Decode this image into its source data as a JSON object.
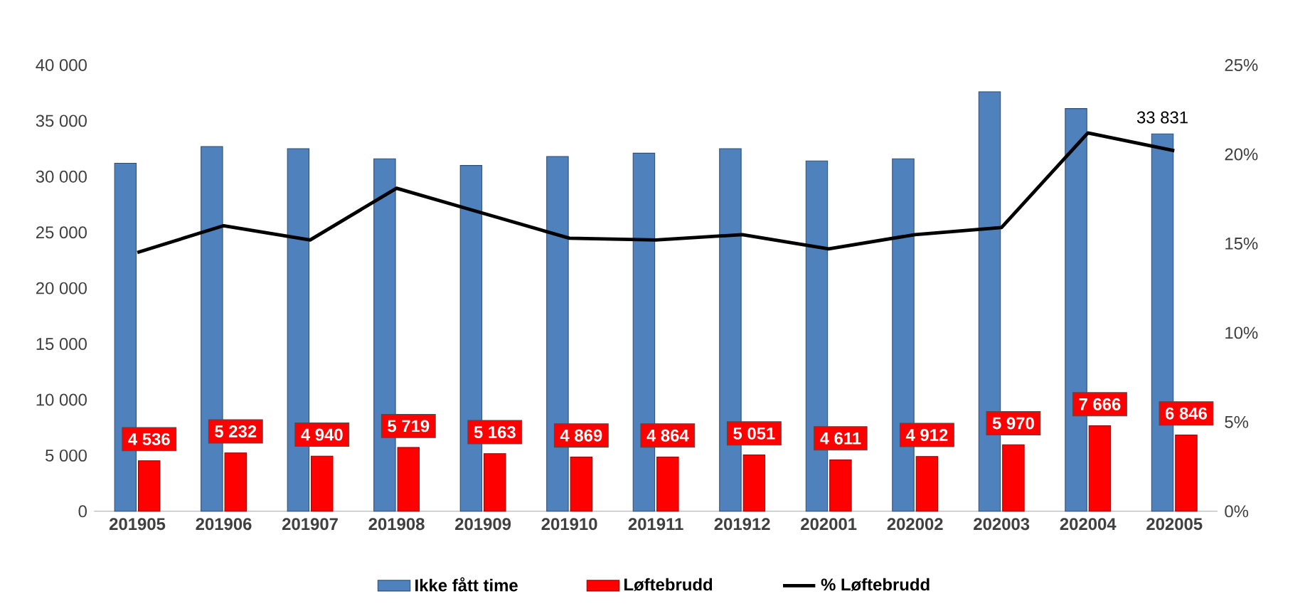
{
  "chart_data": {
    "type": "bar",
    "categories": [
      "201905",
      "201906",
      "201907",
      "201908",
      "201909",
      "201910",
      "201911",
      "201912",
      "202001",
      "202002",
      "202003",
      "202004",
      "202005"
    ],
    "series": [
      {
        "name": "Ikke fått time",
        "color": "#4f81bd",
        "values": [
          31200,
          32700,
          32500,
          31600,
          31000,
          31800,
          32100,
          32500,
          31400,
          31600,
          37600,
          36100,
          33831
        ],
        "value_labels": [
          null,
          null,
          null,
          null,
          null,
          null,
          null,
          null,
          null,
          null,
          null,
          null,
          "33 831"
        ]
      },
      {
        "name": "Løftebrudd",
        "color": "#ff0000",
        "values": [
          4536,
          5232,
          4940,
          5719,
          5163,
          4869,
          4864,
          5051,
          4611,
          4912,
          5970,
          7666,
          6846
        ],
        "value_labels": [
          "4 536",
          "5 232",
          "4 940",
          "5 719",
          "5 163",
          "4 869",
          "4 864",
          "5 051",
          "4 611",
          "4 912",
          "5 970",
          "7 666",
          "6 846"
        ]
      },
      {
        "name": "% Løftebrudd",
        "type": "line",
        "axis": "y2",
        "color": "#000000",
        "values": [
          14.5,
          16.0,
          15.2,
          18.1,
          16.7,
          15.3,
          15.2,
          15.5,
          14.7,
          15.5,
          15.9,
          21.2,
          20.2
        ]
      }
    ],
    "ylim": [
      0,
      40000
    ],
    "yticks": [
      0,
      {
        "value": 5000,
        "label": "5 000"
      },
      {
        "value": 10000,
        "label": "10 000"
      },
      {
        "value": 15000,
        "label": "15 000"
      },
      {
        "value": 20000,
        "label": "20 000"
      },
      {
        "value": 25000,
        "label": "25 000"
      },
      {
        "value": 30000,
        "label": "30 000"
      },
      {
        "value": 35000,
        "label": "35 000"
      },
      {
        "value": 40000,
        "label": "40 000"
      }
    ],
    "y2lim": [
      0,
      25
    ],
    "y2ticks": [
      {
        "value": 0,
        "label": "0%"
      },
      {
        "value": 5,
        "label": "5%"
      },
      {
        "value": 10,
        "label": "10%"
      },
      {
        "value": 15,
        "label": "15%"
      },
      {
        "value": 20,
        "label": "20%"
      },
      {
        "value": 25,
        "label": "25%"
      }
    ],
    "legend": "bottom"
  }
}
